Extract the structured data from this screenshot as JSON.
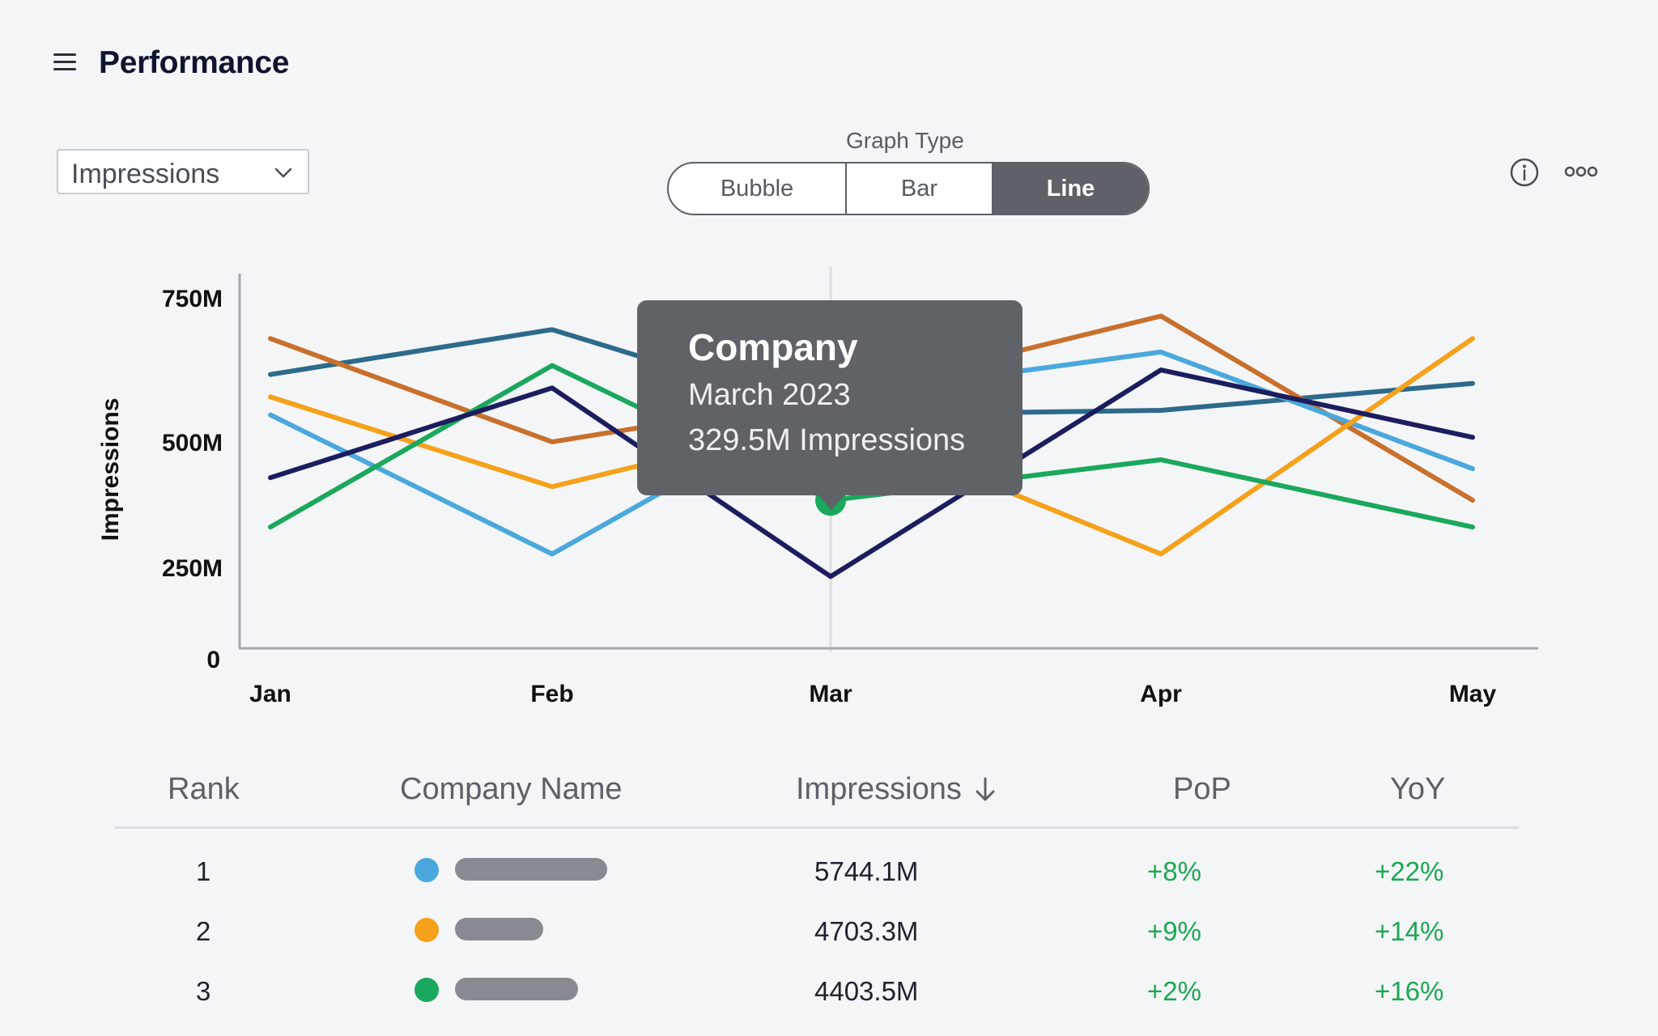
{
  "header": {
    "title": "Performance"
  },
  "metric_select": {
    "value": "Impressions"
  },
  "graph_type": {
    "label": "Graph Type",
    "options": [
      "Bubble",
      "Bar",
      "Line"
    ],
    "selected": "Line"
  },
  "icons": {
    "info": "info-icon",
    "more": "more-icon",
    "menu": "menu-icon",
    "sort": "arrow-down-icon"
  },
  "chart_data": {
    "type": "line",
    "ylabel": "Impressions",
    "yticks": [
      "0",
      "250M",
      "500M",
      "750M"
    ],
    "ylim": [
      0,
      850
    ],
    "categories": [
      "Jan",
      "Feb",
      "Mar",
      "Apr",
      "May"
    ],
    "grid": false,
    "series": [
      {
        "color": "#2d6a8c",
        "values": [
          610,
          710,
          520,
          530,
          590
        ]
      },
      {
        "color": "#c8702c",
        "values": [
          690,
          460,
          560,
          740,
          330
        ]
      },
      {
        "color": "#4aa8dc",
        "values": [
          520,
          210,
          560,
          660,
          400
        ]
      },
      {
        "color": "#f5a11b",
        "values": [
          560,
          360,
          510,
          210,
          690
        ]
      },
      {
        "color": "#1aa85c",
        "values": [
          270,
          630,
          329.5,
          420,
          270
        ]
      },
      {
        "color": "#1b1d5e",
        "values": [
          380,
          580,
          160,
          620,
          470
        ]
      }
    ],
    "highlight": {
      "series_index": 4,
      "category": "Mar",
      "value": 329.5
    }
  },
  "tooltip": {
    "title": "Company",
    "subtitle": "March 2023",
    "value_text": "329.5M Impressions"
  },
  "table": {
    "headers": {
      "rank": "Rank",
      "company": "Company Name",
      "impressions": "Impressions",
      "pop": "PoP",
      "yoy": "YoY"
    },
    "rows": [
      {
        "rank": "1",
        "color": "#4aa8dc",
        "name_bar_fraction": 1.0,
        "impressions": "5744.1M",
        "pop": "+8%",
        "yoy": "+22%"
      },
      {
        "rank": "2",
        "color": "#f5a11b",
        "name_bar_fraction": 0.58,
        "impressions": "4703.3M",
        "pop": "+9%",
        "yoy": "+14%"
      },
      {
        "rank": "3",
        "color": "#1aa85c",
        "name_bar_fraction": 0.81,
        "impressions": "4403.5M",
        "pop": "+2%",
        "yoy": "+16%"
      }
    ]
  }
}
